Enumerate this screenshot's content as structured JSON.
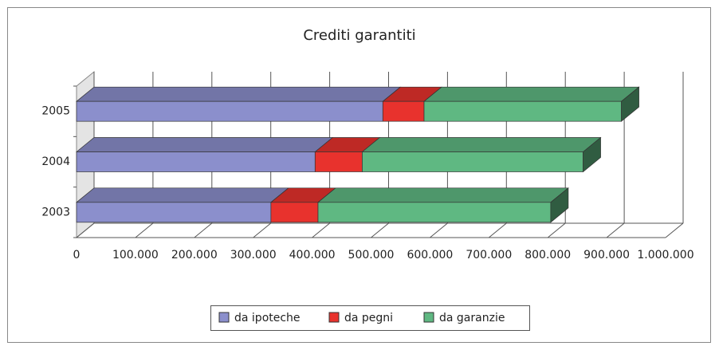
{
  "chart_data": {
    "type": "bar",
    "orientation": "horizontal",
    "stacked": true,
    "three_d": true,
    "title": "Crediti garantiti",
    "categories": [
      "2003",
      "2004",
      "2005"
    ],
    "series": [
      {
        "name": "da ipoteche",
        "color": "#8b8fcc",
        "values": [
          330000,
          405000,
          520000
        ]
      },
      {
        "name": "da pegni",
        "color": "#e8322d",
        "values": [
          80000,
          80000,
          70000
        ]
      },
      {
        "name": "da garanzie",
        "color": "#5fb882",
        "values": [
          395000,
          375000,
          335000
        ]
      }
    ],
    "xlim": [
      0,
      1000000
    ],
    "xticks": [
      0,
      {
        "value": 100000,
        "label": "100.000"
      },
      {
        "value": 200000,
        "label": "200.000"
      },
      {
        "value": 300000,
        "label": "300.000"
      },
      {
        "value": 400000,
        "label": "400.000"
      },
      {
        "value": 500000,
        "label": "500.000"
      },
      {
        "value": 600000,
        "label": "600.000"
      },
      {
        "value": 700000,
        "label": "700.000"
      },
      {
        "value": 800000,
        "label": "800.000"
      },
      {
        "value": 900000,
        "label": "900.000"
      },
      {
        "value": 1000000,
        "label": "1.000.000"
      }
    ],
    "grid": true,
    "legend": "bottom"
  }
}
